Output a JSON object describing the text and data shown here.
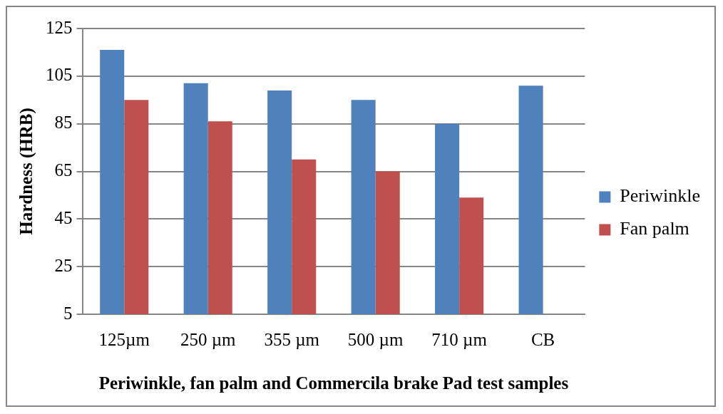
{
  "chart_data": {
    "type": "bar",
    "xlabel": "Periwinkle, fan palm and Commercila brake Pad test samples",
    "ylabel": "Hardness (HRB)",
    "categories": [
      "125µm",
      "250 µm",
      "355 µm",
      "500 µm",
      "710 µm",
      "CB"
    ],
    "series": [
      {
        "name": "Periwinkle",
        "color": "#4f81bd",
        "values": [
          116,
          102,
          99,
          95,
          85,
          101
        ]
      },
      {
        "name": "Fan palm",
        "color": "#c0504d",
        "values": [
          95,
          86,
          70,
          65,
          54,
          null
        ]
      }
    ],
    "ylim": [
      5,
      125
    ],
    "yticks": [
      5,
      25,
      45,
      65,
      85,
      105,
      125
    ],
    "grid": "y",
    "legend": "right"
  }
}
